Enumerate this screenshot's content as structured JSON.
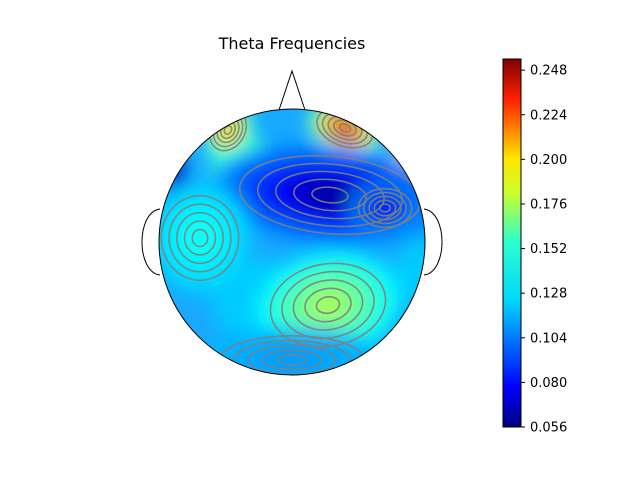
{
  "chart_data": {
    "type": "heatmap",
    "subtype": "eeg-topographic-map",
    "title": "Theta Frequencies",
    "colormap": "jet",
    "colorbar": {
      "min": 0.056,
      "max": 0.254,
      "ticks": [
        0.056,
        0.08,
        0.104,
        0.128,
        0.152,
        0.176,
        0.2,
        0.224,
        0.248
      ],
      "tick_labels": [
        "0.056",
        "0.080",
        "0.104",
        "0.128",
        "0.152",
        "0.176",
        "0.200",
        "0.224",
        "0.248"
      ]
    },
    "regions": [
      {
        "location": "frontal-right",
        "value": 0.254
      },
      {
        "location": "frontal-left",
        "value": 0.21
      },
      {
        "location": "frontal-center",
        "value": 0.06
      },
      {
        "location": "temporal-left",
        "value": 0.135
      },
      {
        "location": "parietal-right",
        "value": 0.165
      },
      {
        "location": "central-right",
        "value": 0.07
      },
      {
        "location": "occipital",
        "value": 0.11
      }
    ],
    "grid": false
  }
}
